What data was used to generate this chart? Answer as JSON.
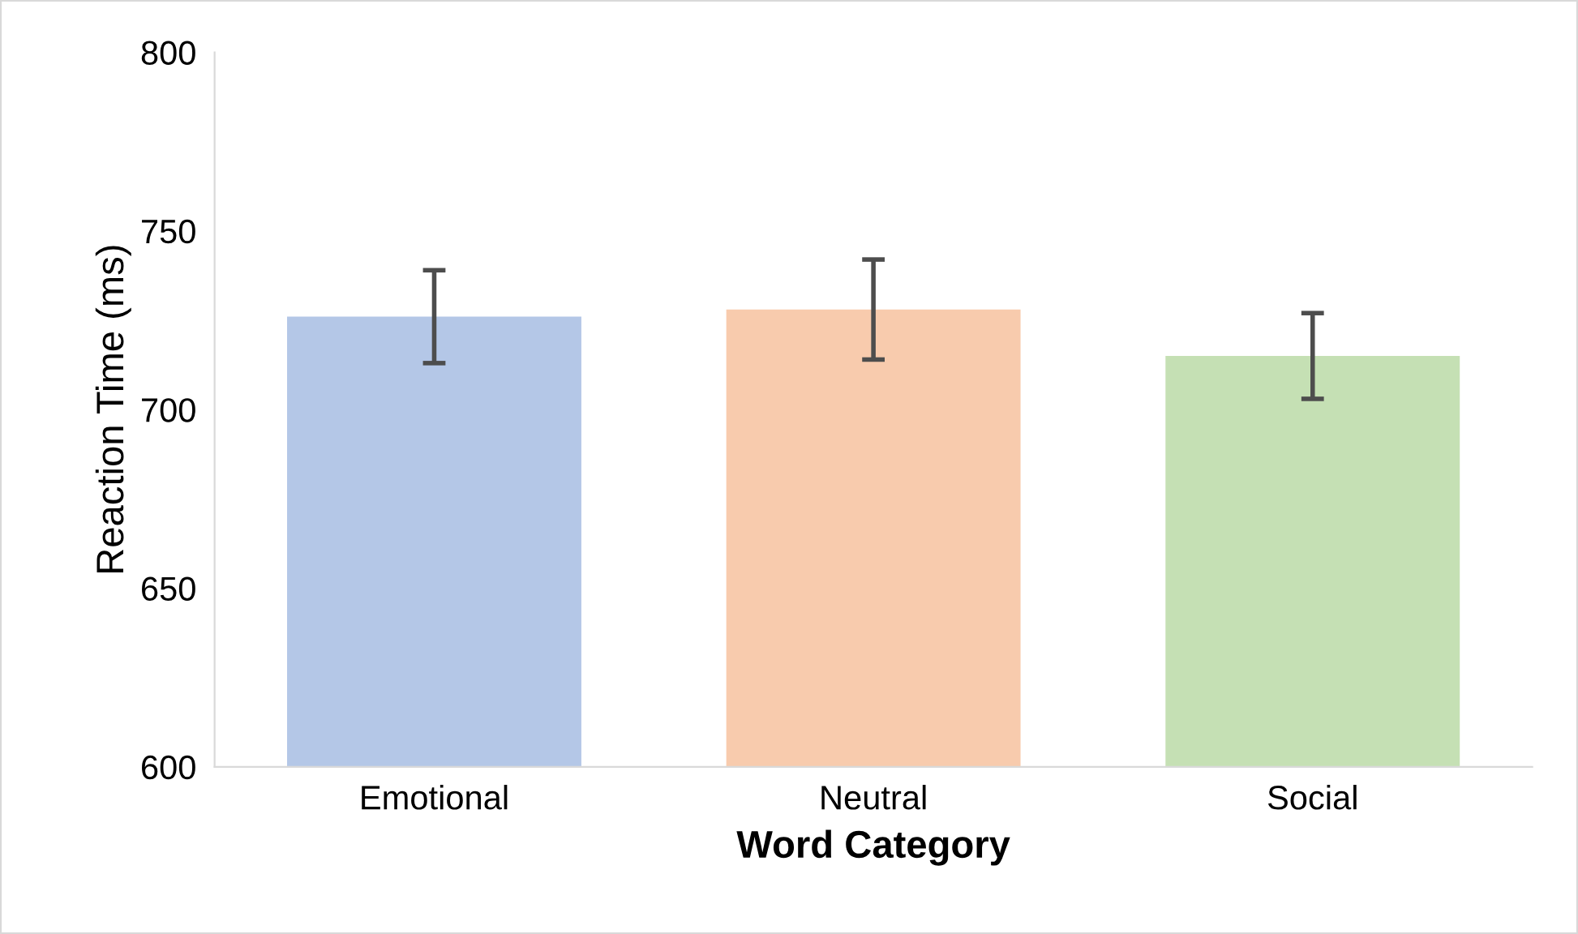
{
  "chart_data": {
    "type": "bar",
    "xlabel": "Word Category",
    "ylabel": "Reaction Time (ms)",
    "categories": [
      "Emotional",
      "Neutral",
      "Social"
    ],
    "values": [
      726,
      728,
      715
    ],
    "errors": [
      13,
      14,
      12
    ],
    "colors": [
      "#b4c7e7",
      "#f8cbad",
      "#c5e0b4"
    ],
    "ylim": [
      600,
      800
    ],
    "yticks": [
      600,
      650,
      700,
      750,
      800
    ],
    "grid": false,
    "legend": false
  }
}
